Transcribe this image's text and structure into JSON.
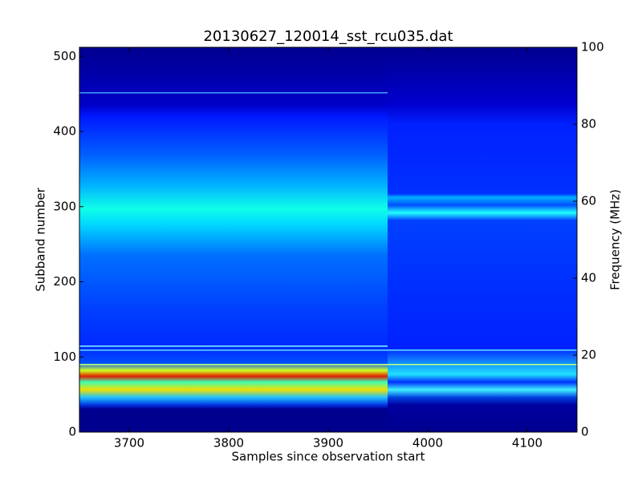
{
  "chart_data": {
    "type": "heatmap",
    "title": "20130627_120014_sst_rcu035.dat",
    "x_label": "Samples since observation start",
    "y_label": "Subband number",
    "y2_label": "Frequency (MHz)",
    "xlim": [
      3650,
      4150
    ],
    "xticks": [
      3700,
      3800,
      3900,
      4000,
      4100
    ],
    "ylim": [
      0,
      512
    ],
    "yticks": [
      0,
      100,
      200,
      300,
      400,
      500
    ],
    "y2lim": [
      0,
      100
    ],
    "y2ticks": [
      0,
      20,
      40,
      60,
      80,
      100
    ]
  }
}
